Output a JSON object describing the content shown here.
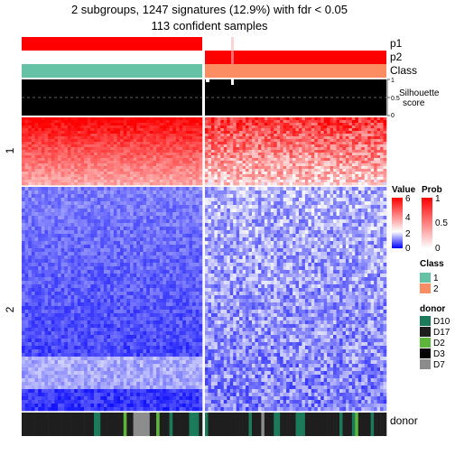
{
  "title": {
    "line1": "2 subgroups, 1247 signatures (12.9%) with fdr < 0.05",
    "line2": "113 confident samples"
  },
  "annotation_labels": {
    "p1": "p1",
    "p2": "p2",
    "class": "Class",
    "silhouette_line1": "Silhouette",
    "silhouette_line2": "score",
    "donor": "donor"
  },
  "silhouette_ticks": [
    "1",
    "0.5",
    "0"
  ],
  "row_groups": [
    "1",
    "2"
  ],
  "colors": {
    "class1": "#66C2A5",
    "class2": "#FC8D62",
    "prob_high": "#FF0000",
    "value_high": "#FF0000",
    "value_mid": "#FFFFFF",
    "value_low": "#0000FF"
  },
  "legends": {
    "value": {
      "title": "Value",
      "ticks": [
        "6",
        "4",
        "2",
        "0"
      ]
    },
    "prob": {
      "title": "Prob",
      "ticks": [
        "1",
        "0.5",
        "0"
      ]
    },
    "class": {
      "title": "Class",
      "items": [
        {
          "label": "1",
          "color": "#66C2A5"
        },
        {
          "label": "2",
          "color": "#FC8D62"
        }
      ]
    },
    "donor": {
      "title": "donor",
      "items": [
        {
          "label": "D10",
          "color": "#1B7A5A"
        },
        {
          "label": "D17",
          "color": "#1E1E1E"
        },
        {
          "label": "D2",
          "color": "#5DB53A"
        },
        {
          "label": "D3",
          "color": "#000000"
        },
        {
          "label": "D7",
          "color": "#8C8C8C"
        }
      ]
    }
  },
  "chart_data": {
    "type": "heatmap",
    "title": "2 subgroups, 1247 signatures (12.9%) with fdr < 0.05",
    "subtitle": "113 confident samples",
    "samples": 113,
    "signatures": 1247,
    "column_groups": [
      {
        "class": "1",
        "approx_samples": 55
      },
      {
        "class": "2",
        "approx_samples": 58
      }
    ],
    "row_groups": [
      "1",
      "2"
    ],
    "value_range": [
      0,
      6
    ],
    "prob_range": [
      0,
      1
    ],
    "silhouette_range": [
      0,
      1
    ]
  }
}
